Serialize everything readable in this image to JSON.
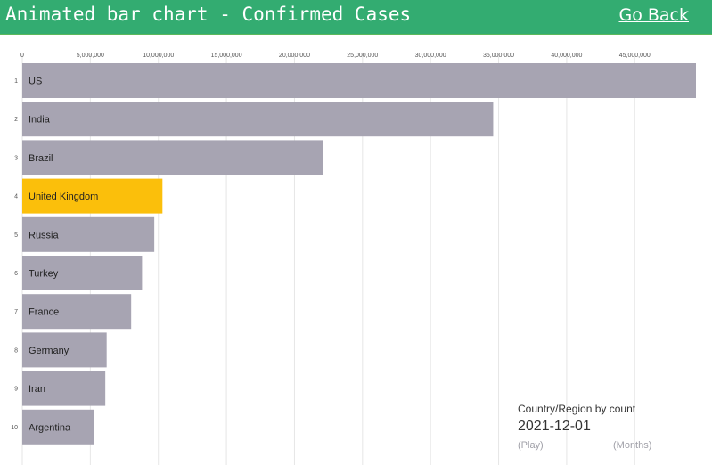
{
  "header": {
    "title": "Animated bar chart - Confirmed Cases",
    "go_back_label": "Go Back"
  },
  "caption": {
    "title": "Country/Region by count",
    "date": "2021-12-01"
  },
  "controls": {
    "play_label": "(Play)",
    "months_label": "(Months)"
  },
  "colors": {
    "header_bg": "#0f9d58",
    "bar_default": "#a7a4b2",
    "bar_highlight": "#fbbf0b",
    "gridline": "#e6e6e6"
  },
  "chart_data": {
    "type": "bar",
    "orientation": "horizontal",
    "xlim": [
      0,
      49500000
    ],
    "x_ticks": [
      {
        "value": 0,
        "label": "0"
      },
      {
        "value": 5000000,
        "label": "5,000,000"
      },
      {
        "value": 10000000,
        "label": "10,000,000"
      },
      {
        "value": 15000000,
        "label": "15,000,000"
      },
      {
        "value": 20000000,
        "label": "20,000,000"
      },
      {
        "value": 25000000,
        "label": "25,000,000"
      },
      {
        "value": 30000000,
        "label": "30,000,000"
      },
      {
        "value": 35000000,
        "label": "35,000,000"
      },
      {
        "value": 40000000,
        "label": "40,000,000"
      },
      {
        "value": 45000000,
        "label": "45,000,000"
      }
    ],
    "grid": true,
    "bars": [
      {
        "rank": "1",
        "label": "US",
        "value": 49500000,
        "highlight": false
      },
      {
        "rank": "2",
        "label": "India",
        "value": 34600000,
        "highlight": false
      },
      {
        "rank": "3",
        "label": "Brazil",
        "value": 22100000,
        "highlight": false
      },
      {
        "rank": "4",
        "label": "United Kingdom",
        "value": 10300000,
        "highlight": true
      },
      {
        "rank": "5",
        "label": "Russia",
        "value": 9700000,
        "highlight": false
      },
      {
        "rank": "6",
        "label": "Turkey",
        "value": 8800000,
        "highlight": false
      },
      {
        "rank": "7",
        "label": "France",
        "value": 8000000,
        "highlight": false
      },
      {
        "rank": "8",
        "label": "Germany",
        "value": 6200000,
        "highlight": false
      },
      {
        "rank": "9",
        "label": "Iran",
        "value": 6100000,
        "highlight": false
      },
      {
        "rank": "10",
        "label": "Argentina",
        "value": 5300000,
        "highlight": false
      }
    ]
  }
}
